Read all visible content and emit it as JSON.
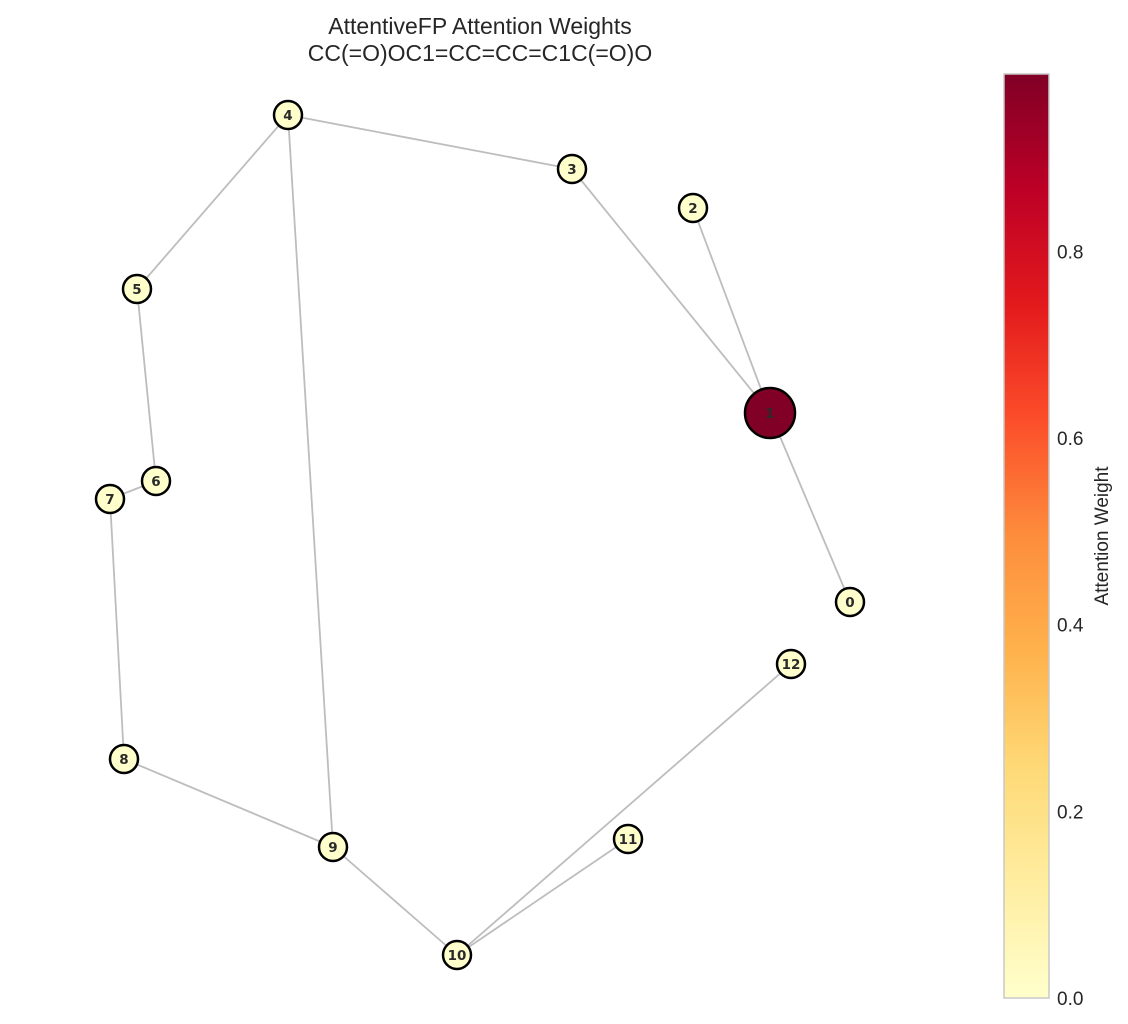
{
  "title": {
    "line1": "AttentiveFP Attention Weights",
    "line2": "CC(=O)OC1=CC=CC=C1C(=O)O"
  },
  "colorbar": {
    "label": "Attention Weight",
    "min": 0.0,
    "max": 0.99,
    "ticks": [
      "0.0",
      "0.2",
      "0.4",
      "0.6",
      "0.8"
    ],
    "colormap": "YlOrRd"
  },
  "graph": {
    "nodes": [
      {
        "id": "0",
        "weight": 0.0
      },
      {
        "id": "1",
        "weight": 0.99
      },
      {
        "id": "2",
        "weight": 0.0
      },
      {
        "id": "3",
        "weight": 0.0
      },
      {
        "id": "4",
        "weight": 0.0
      },
      {
        "id": "5",
        "weight": 0.0
      },
      {
        "id": "6",
        "weight": 0.0
      },
      {
        "id": "7",
        "weight": 0.0
      },
      {
        "id": "8",
        "weight": 0.0
      },
      {
        "id": "9",
        "weight": 0.0
      },
      {
        "id": "10",
        "weight": 0.0
      },
      {
        "id": "11",
        "weight": 0.0
      },
      {
        "id": "12",
        "weight": 0.0
      }
    ],
    "edges": [
      [
        "0",
        "1"
      ],
      [
        "1",
        "2"
      ],
      [
        "1",
        "3"
      ],
      [
        "3",
        "4"
      ],
      [
        "4",
        "5"
      ],
      [
        "5",
        "6"
      ],
      [
        "6",
        "7"
      ],
      [
        "7",
        "8"
      ],
      [
        "8",
        "9"
      ],
      [
        "9",
        "4"
      ],
      [
        "9",
        "10"
      ],
      [
        "10",
        "11"
      ],
      [
        "10",
        "12"
      ]
    ],
    "edge_color": "#bdbdbd",
    "node_outline_color": "#000000"
  }
}
